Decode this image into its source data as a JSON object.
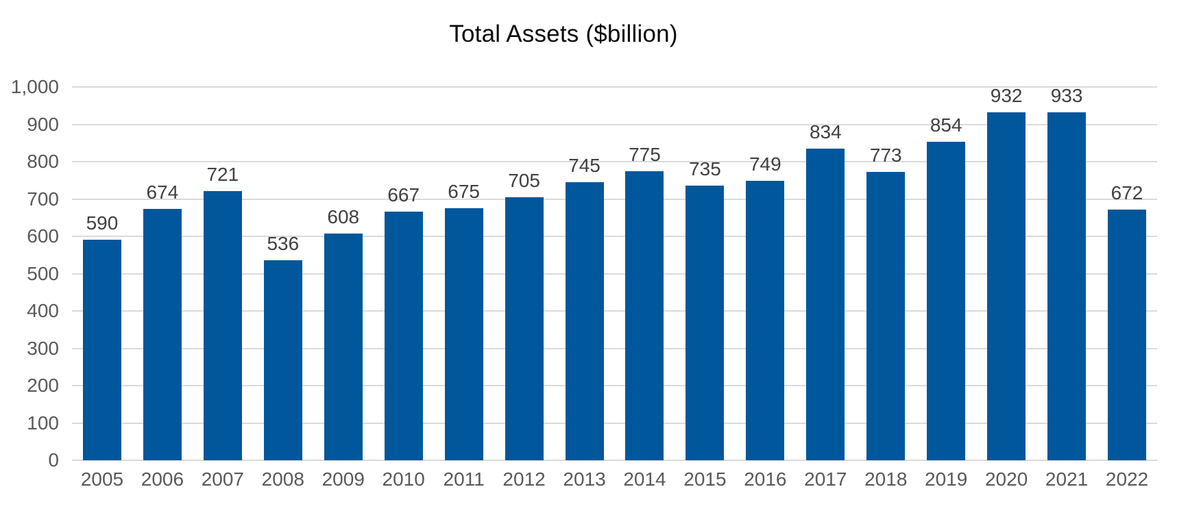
{
  "chart_data": {
    "type": "bar",
    "title": "Total Assets ($billion)",
    "categories": [
      "2005",
      "2006",
      "2007",
      "2008",
      "2009",
      "2010",
      "2011",
      "2012",
      "2013",
      "2014",
      "2015",
      "2016",
      "2017",
      "2018",
      "2019",
      "2020",
      "2021",
      "2022"
    ],
    "values": [
      590,
      674,
      721,
      536,
      608,
      667,
      675,
      705,
      745,
      775,
      735,
      749,
      834,
      773,
      854,
      932,
      933,
      672
    ],
    "xlabel": "",
    "ylabel": "",
    "ylim": [
      0,
      1000
    ],
    "ytick_values": [
      0,
      100,
      200,
      300,
      400,
      500,
      600,
      700,
      800,
      900,
      1000
    ],
    "ytick_labels": [
      "0",
      "100",
      "200",
      "300",
      "400",
      "500",
      "600",
      "700",
      "800",
      "900",
      "1,000"
    ],
    "grid": "horizontal",
    "legend_position": "none",
    "data_labels_visible": true,
    "colors": {
      "bar": "#00579B",
      "data_label": "#404040",
      "axis_label": "#595959",
      "gridline": "#DADADA",
      "title": "#0A0A0A",
      "background": "#FFFFFF"
    }
  }
}
